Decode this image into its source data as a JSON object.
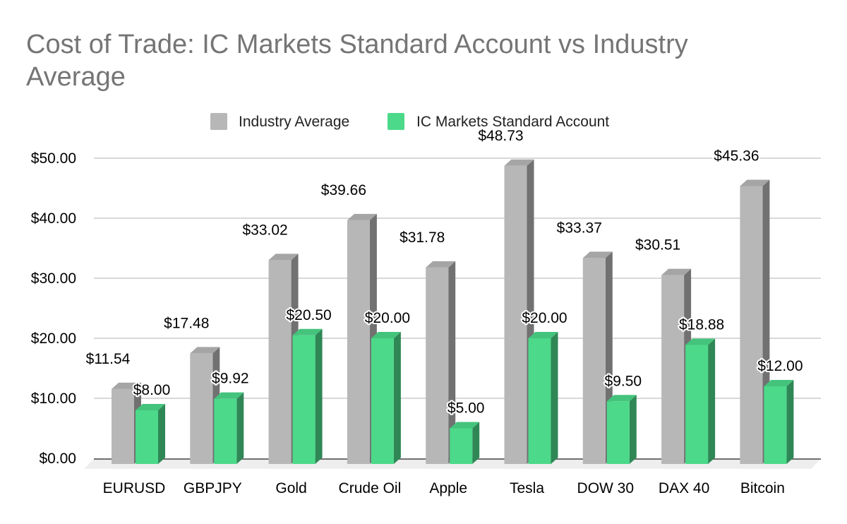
{
  "chart_data": {
    "type": "bar",
    "title": "Cost of Trade: IC Markets Standard Account vs Industry Average",
    "xlabel": "",
    "ylabel": "",
    "categories": [
      "EURUSD",
      "GBPJPY",
      "Gold",
      "Crude Oil",
      "Apple",
      "Tesla",
      "DOW 30",
      "DAX 40",
      "Bitcoin"
    ],
    "series": [
      {
        "name": "Industry Average",
        "color": "#b7b7b7",
        "values": [
          11.54,
          17.48,
          33.02,
          39.66,
          31.78,
          48.73,
          33.37,
          30.51,
          45.36
        ],
        "labels": [
          "$11.54",
          "$17.48",
          "$33.02",
          "$39.66",
          "$31.78",
          "$48.73",
          "$33.37",
          "$30.51",
          "$45.36"
        ]
      },
      {
        "name": "IC Markets Standard Account",
        "color": "#4cd98a",
        "values": [
          8.0,
          9.92,
          20.5,
          20.0,
          5.0,
          20.0,
          9.5,
          18.88,
          12.0
        ],
        "labels": [
          "$8.00",
          "$9.92",
          "$20.50",
          "$20.00",
          "$5.00",
          "$20.00",
          "$9.50",
          "$18.88",
          "$12.00"
        ]
      }
    ],
    "ylim": [
      0,
      50
    ],
    "yticks": [
      0,
      10,
      20,
      30,
      40,
      50
    ],
    "ytick_labels": [
      "$0.00",
      "$10.00",
      "$20.00",
      "$30.00",
      "$40.00",
      "$50.00"
    ],
    "grid": true,
    "legend": "top-center",
    "style": "3d-columns"
  }
}
